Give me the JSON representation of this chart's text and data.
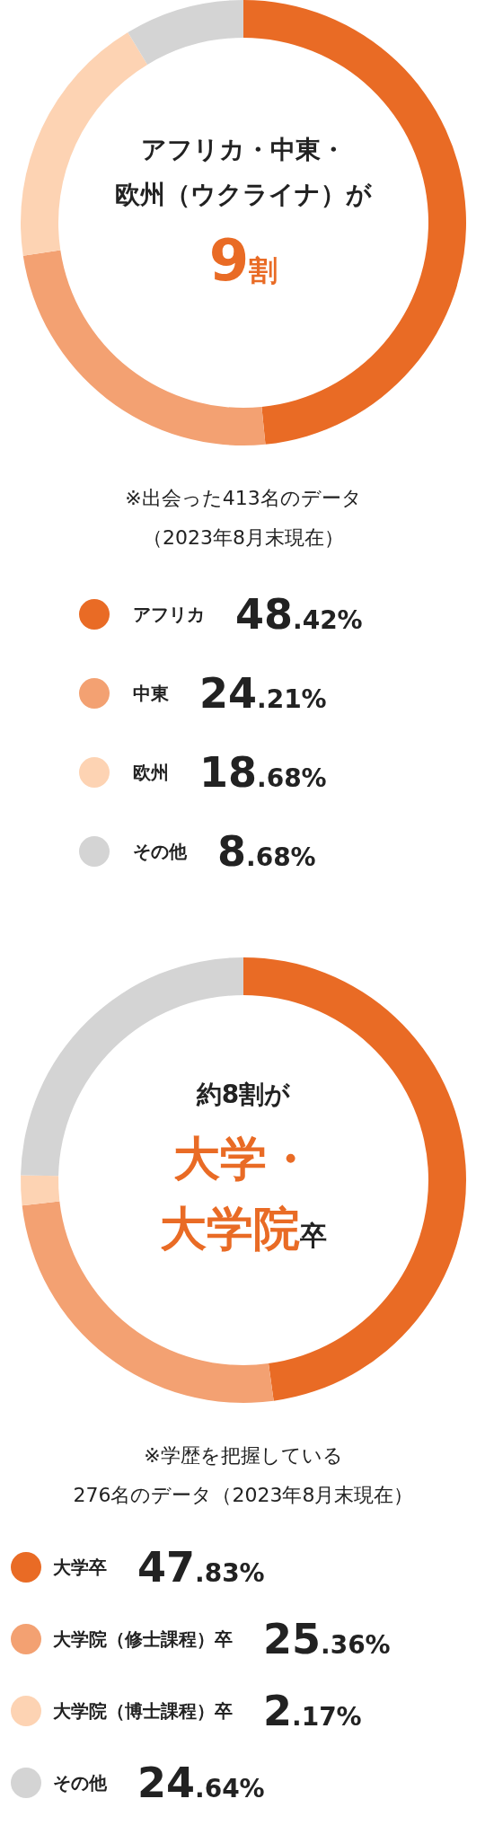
{
  "chart_data": [
    {
      "type": "donut",
      "title": "アフリカ・中東・欧州（ウクライナ）が",
      "subtitle": "9割",
      "categories": [
        "アフリカ",
        "中東",
        "欧州",
        "その他"
      ],
      "values": [
        48.42,
        24.21,
        18.68,
        8.68
      ],
      "colors": [
        "#e96b25",
        "#f3a172",
        "#fdd3b3",
        "#d4d4d4"
      ],
      "value_labels": [
        "48.42%",
        "24.21%",
        "18.68%",
        "8.68%"
      ],
      "legend": "bottom",
      "annotations": [
        "※出会った413名のデータ",
        "（2023年8月末現在）"
      ]
    },
    {
      "type": "donut",
      "title": "約8割が",
      "subtitle": "大学・大学院卒",
      "categories": [
        "大学卒",
        "大学院（修士課程）卒",
        "大学院（博士課程）卒",
        "その他"
      ],
      "values": [
        47.83,
        25.36,
        2.17,
        24.64
      ],
      "colors": [
        "#e96b25",
        "#f3a172",
        "#fdd3b3",
        "#d4d4d4"
      ],
      "value_labels": [
        "47.83%",
        "25.36%",
        "2.17%",
        "24.64%"
      ],
      "legend": "bottom",
      "annotations": [
        "※学歴を把握している",
        "276名のデータ（2023年8月末現在）"
      ]
    }
  ]
}
